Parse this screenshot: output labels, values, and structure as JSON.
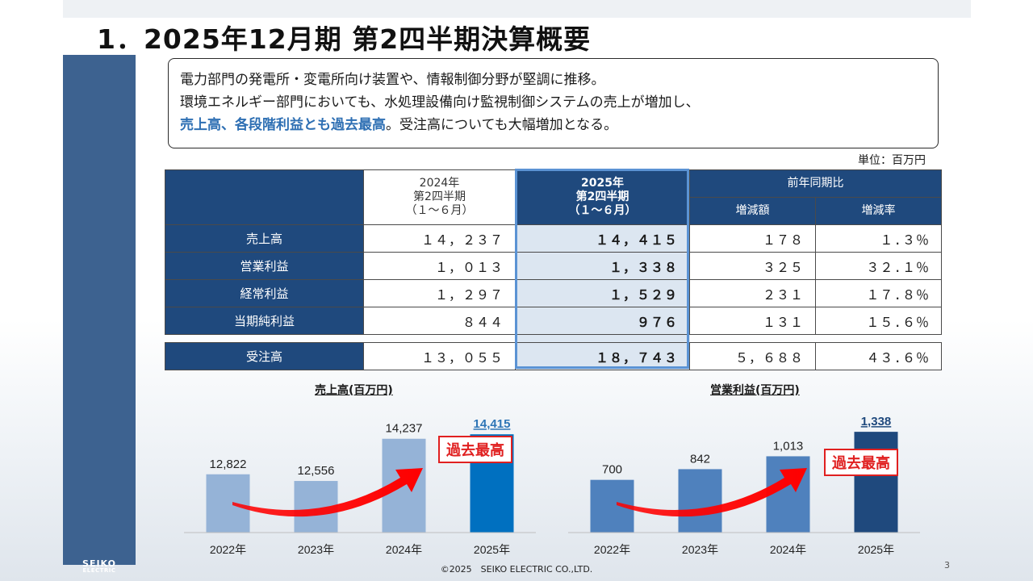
{
  "title": "1．2025年12月期 第2四半期決算概要",
  "summary": {
    "line1": "電力部門の発電所・変電所向け装置や、情報制御分野が堅調に推移。",
    "line2": "環境エネルギー部門においても、水処理設備向け監視制御システムの売上が増加し、",
    "line3_highlight": "売上高、各段階利益とも過去最高",
    "line3_rest": "。受注高についても大幅増加となる。"
  },
  "unit": "単位：百万円",
  "table": {
    "header": {
      "prev_year": "2024年",
      "prev_quarter": "第2四半期",
      "prev_period": "（１～６月）",
      "cur_year": "2025年",
      "cur_quarter": "第2四半期",
      "cur_period": "（１～６月）",
      "comparison": "前年同期比",
      "change_amount": "増減額",
      "change_rate": "増減率"
    },
    "rows": [
      {
        "label": "売上高",
        "prev": "１４，２３７",
        "cur": "１４，４１５",
        "diff": "１７８",
        "rate": "１.３％"
      },
      {
        "label": "営業利益",
        "prev": "１，０１３",
        "cur": "１，３３８",
        "diff": "３２５",
        "rate": "３２.１％"
      },
      {
        "label": "経常利益",
        "prev": "１，２９７",
        "cur": "１，５２９",
        "diff": "２３１",
        "rate": "１７.８％"
      },
      {
        "label": "当期純利益",
        "prev": "８４４",
        "cur": "９７６",
        "diff": "１３１",
        "rate": "１５.６％"
      }
    ],
    "orders": {
      "label": "受注高",
      "prev": "１３，０５５",
      "cur": "１８，７４３",
      "diff": "５，６８８",
      "rate": "４３.６％"
    }
  },
  "chart_data": [
    {
      "type": "bar",
      "title": "売上高(百万円)",
      "categories": [
        "2022年",
        "2023年",
        "2024年",
        "2025年"
      ],
      "values": [
        12822,
        12556,
        14237,
        14415
      ],
      "value_labels": [
        "12,822",
        "12,556",
        "14,237",
        "14,415"
      ],
      "ylim": [
        10500,
        15000
      ],
      "colors": [
        "#95b3d7",
        "#95b3d7",
        "#95b3d7",
        "#0070c0"
      ],
      "highlight_label_color": "#2e75b6",
      "badge": "過去最高",
      "grid": false
    },
    {
      "type": "bar",
      "title": "営業利益(百万円)",
      "categories": [
        "2022年",
        "2023年",
        "2024年",
        "2025年"
      ],
      "values": [
        700,
        842,
        1013,
        1338
      ],
      "value_labels": [
        "700",
        "842",
        "1,013",
        "1,338"
      ],
      "ylim": [
        0,
        1500
      ],
      "colors": [
        "#4f81bd",
        "#4f81bd",
        "#4f81bd",
        "#1f497d"
      ],
      "highlight_label_color": "#1f497d",
      "badge": "過去最高",
      "grid": false
    }
  ],
  "footer": "©2025　SEIKO ELECTRIC CO.,LTD.",
  "page_number": "3",
  "logo": {
    "line1": "SEIKO",
    "line2": "ELECTRIC"
  },
  "colors": {
    "accent_blue": "#1f497d",
    "highlight_text": "#2e6fb3",
    "badge_red": "#e02020"
  }
}
